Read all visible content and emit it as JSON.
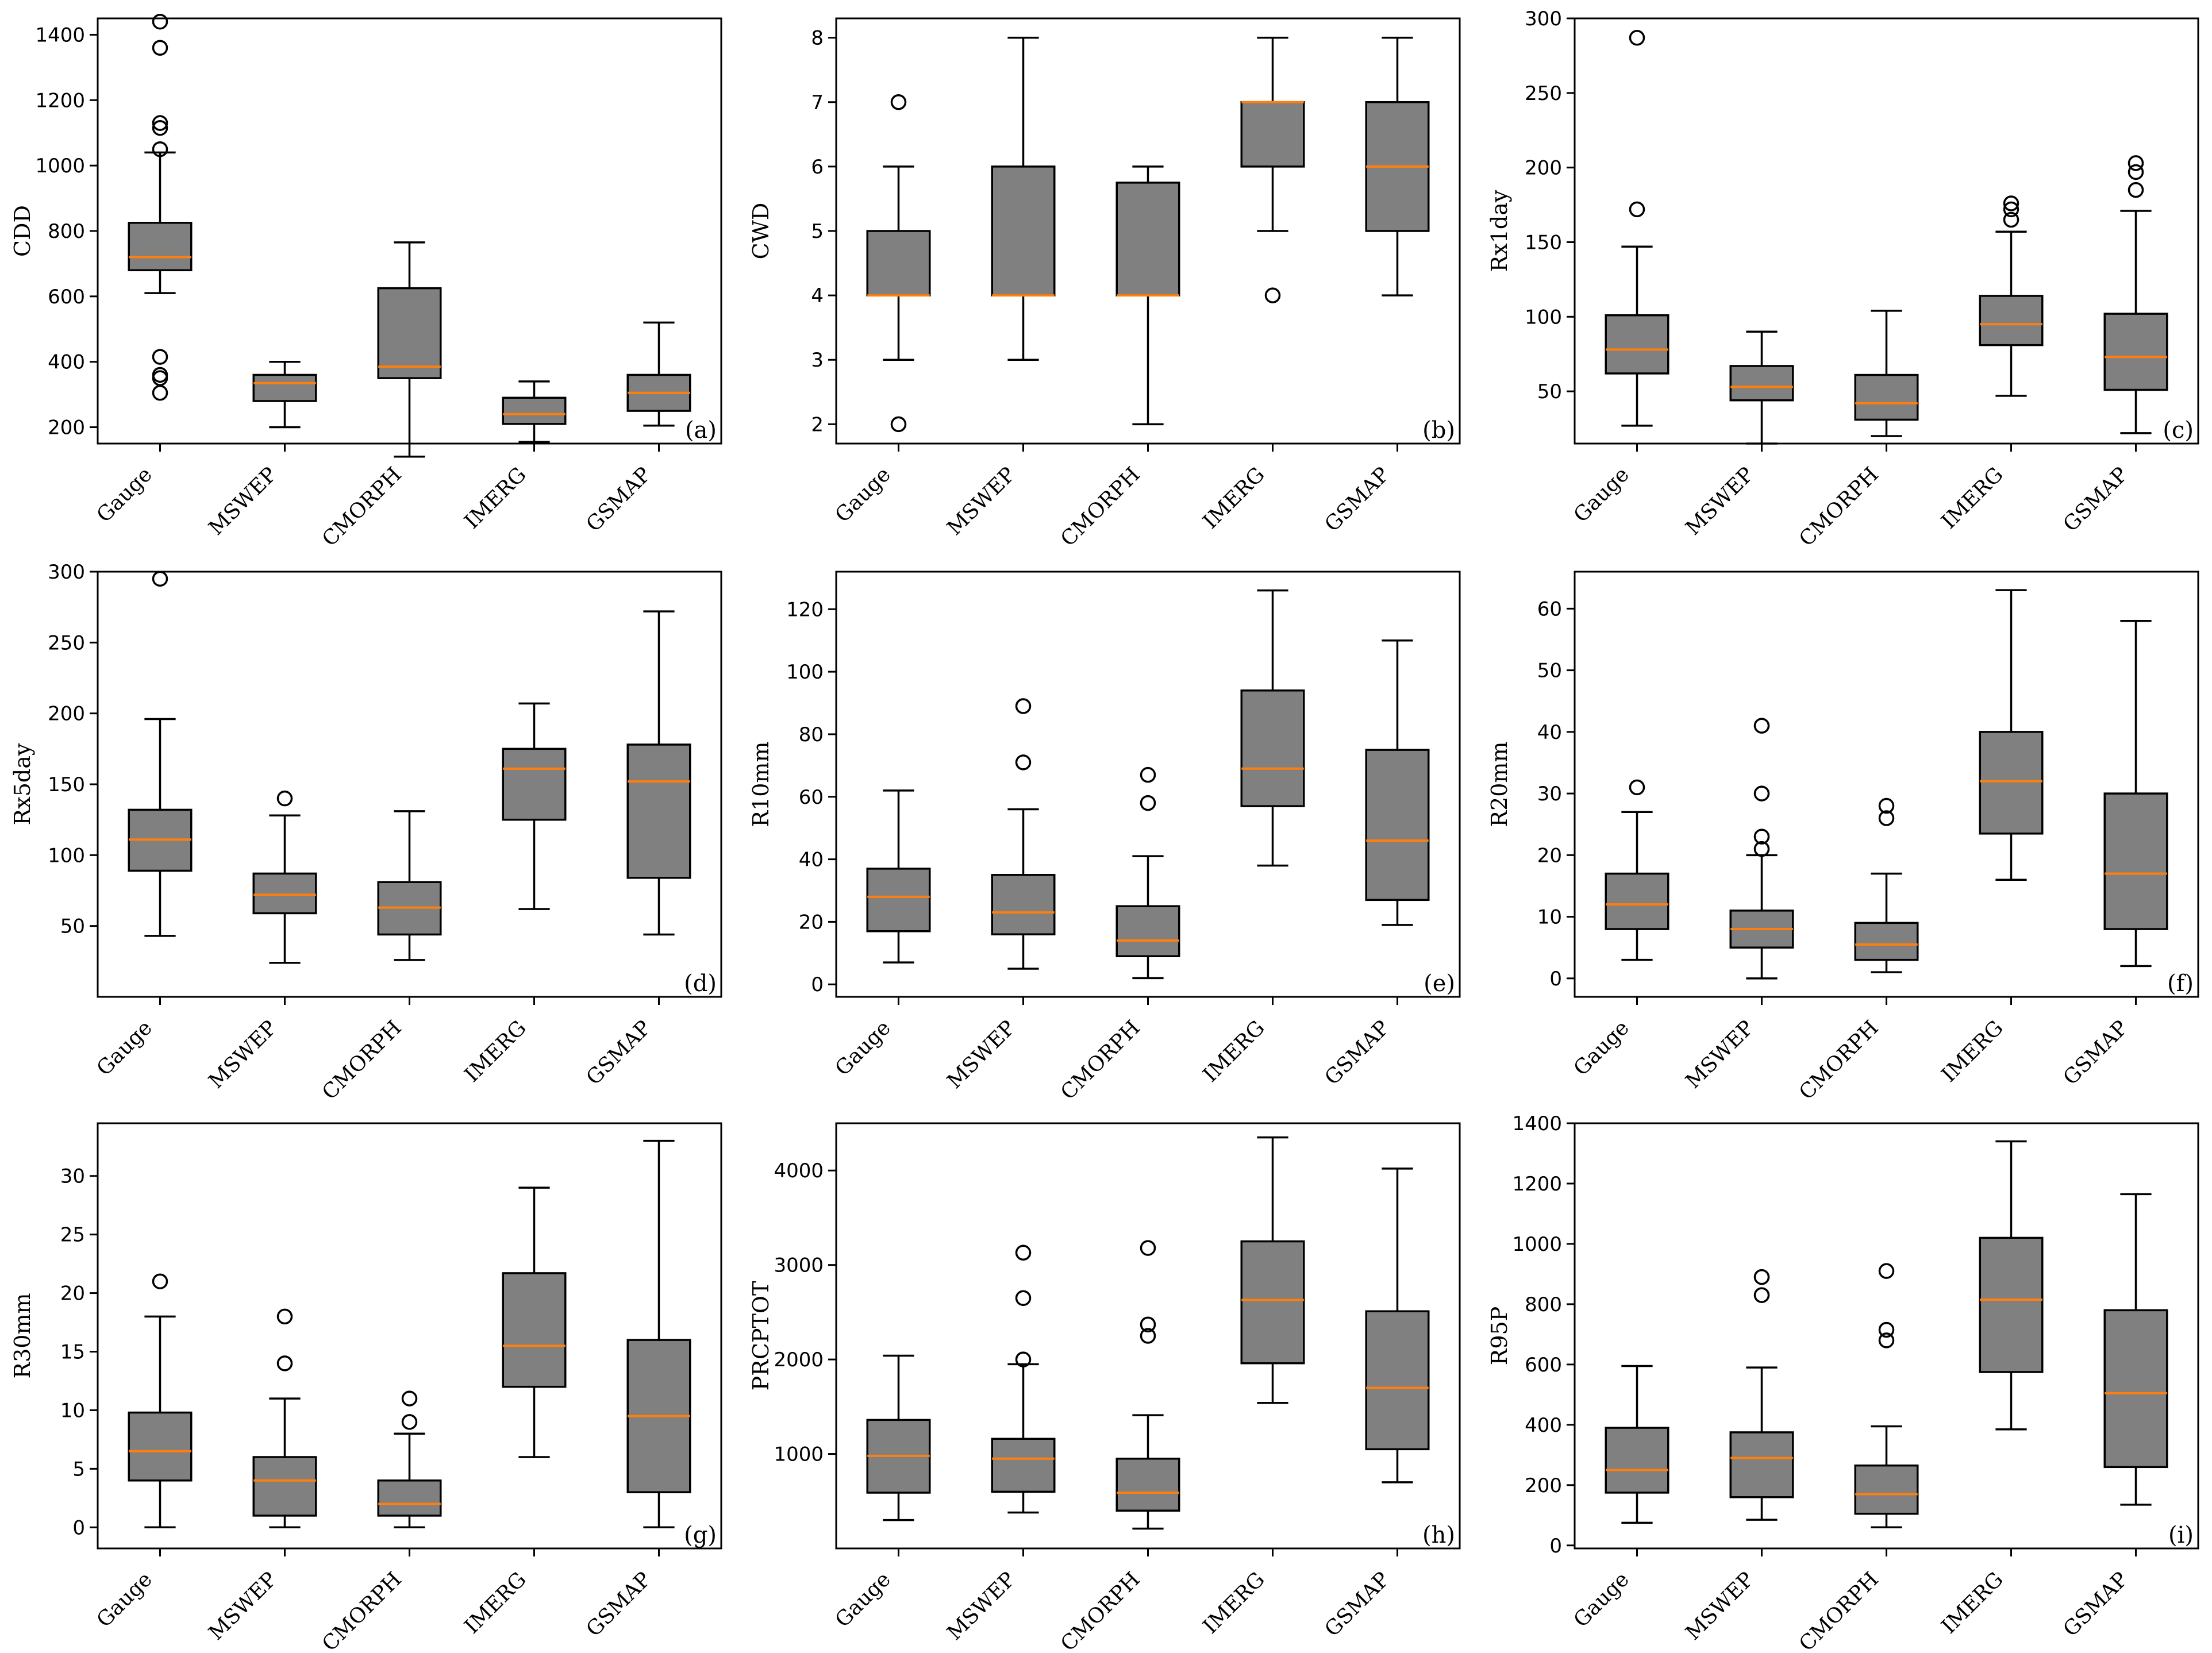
{
  "figure": {
    "box_color": "#808080",
    "median_color": "#ff7f0e",
    "categories": [
      "Gauge",
      "MSWEP",
      "CMORPH",
      "IMERG",
      "GSMAP"
    ]
  },
  "chart_data": [
    {
      "type": "box",
      "tag": "(a)",
      "ylabel": "CDD",
      "ylim": [
        150,
        1450
      ],
      "yticks": [
        200,
        400,
        600,
        800,
        1000,
        1200,
        1400
      ],
      "boxes": [
        {
          "whislo": 610,
          "q1": 680,
          "med": 720,
          "q3": 825,
          "whishi": 1040,
          "fliers": [
            1440,
            1360,
            1130,
            1115,
            1050,
            415,
            360,
            350,
            305
          ]
        },
        {
          "whislo": 200,
          "q1": 280,
          "med": 335,
          "q3": 360,
          "whishi": 400,
          "fliers": []
        },
        {
          "whislo": 110,
          "q1": 350,
          "med": 385,
          "q3": 625,
          "whishi": 765,
          "fliers": []
        },
        {
          "whislo": 155,
          "q1": 210,
          "med": 240,
          "q3": 290,
          "whishi": 340,
          "fliers": []
        },
        {
          "whislo": 205,
          "q1": 250,
          "med": 305,
          "q3": 360,
          "whishi": 520,
          "fliers": []
        }
      ]
    },
    {
      "type": "box",
      "tag": "(b)",
      "ylabel": "CWD",
      "ylim": [
        1.7,
        8.3
      ],
      "yticks": [
        2,
        3,
        4,
        5,
        6,
        7,
        8
      ],
      "boxes": [
        {
          "whislo": 3,
          "q1": 4,
          "med": 4,
          "q3": 5,
          "whishi": 6,
          "fliers": [
            7,
            2
          ]
        },
        {
          "whislo": 3,
          "q1": 4,
          "med": 4,
          "q3": 6,
          "whishi": 8,
          "fliers": []
        },
        {
          "whislo": 2,
          "q1": 4,
          "med": 4,
          "q3": 5.75,
          "whishi": 6,
          "fliers": []
        },
        {
          "whislo": 5,
          "q1": 6,
          "med": 7,
          "q3": 7,
          "whishi": 8,
          "fliers": [
            4
          ]
        },
        {
          "whislo": 4,
          "q1": 5,
          "med": 6,
          "q3": 7,
          "whishi": 8,
          "fliers": []
        }
      ]
    },
    {
      "type": "box",
      "tag": "(c)",
      "ylabel": "Rx1day",
      "ylim": [
        15,
        300
      ],
      "yticks": [
        50,
        100,
        150,
        200,
        250,
        300
      ],
      "boxes": [
        {
          "whislo": 27,
          "q1": 62,
          "med": 78,
          "q3": 101,
          "whishi": 147,
          "fliers": [
            287,
            172
          ]
        },
        {
          "whislo": 15,
          "q1": 44,
          "med": 53,
          "q3": 67,
          "whishi": 90,
          "fliers": []
        },
        {
          "whislo": 20,
          "q1": 31,
          "med": 42,
          "q3": 61,
          "whishi": 104,
          "fliers": []
        },
        {
          "whislo": 47,
          "q1": 81,
          "med": 95,
          "q3": 114,
          "whishi": 157,
          "fliers": [
            176,
            172,
            165
          ]
        },
        {
          "whislo": 22,
          "q1": 51,
          "med": 73,
          "q3": 102,
          "whishi": 171,
          "fliers": [
            203,
            197,
            185
          ]
        }
      ]
    },
    {
      "type": "box",
      "tag": "(d)",
      "ylabel": "Rx5day",
      "ylim": [
        0,
        300
      ],
      "yticks": [
        50,
        100,
        150,
        200,
        250,
        300
      ],
      "boxes": [
        {
          "whislo": 43,
          "q1": 89,
          "med": 111,
          "q3": 132,
          "whishi": 196,
          "fliers": [
            295
          ]
        },
        {
          "whislo": 24,
          "q1": 59,
          "med": 72,
          "q3": 87,
          "whishi": 128,
          "fliers": [
            140
          ]
        },
        {
          "whislo": 26,
          "q1": 44,
          "med": 63,
          "q3": 81,
          "whishi": 131,
          "fliers": []
        },
        {
          "whislo": 62,
          "q1": 125,
          "med": 161,
          "q3": 175,
          "whishi": 207,
          "fliers": []
        },
        {
          "whislo": 44,
          "q1": 84,
          "med": 152,
          "q3": 178,
          "whishi": 272,
          "fliers": []
        }
      ]
    },
    {
      "type": "box",
      "tag": "(e)",
      "ylabel": "R10mm",
      "ylim": [
        -4,
        132
      ],
      "yticks": [
        0,
        20,
        40,
        60,
        80,
        100,
        120
      ],
      "boxes": [
        {
          "whislo": 7,
          "q1": 17,
          "med": 28,
          "q3": 37,
          "whishi": 62,
          "fliers": []
        },
        {
          "whislo": 5,
          "q1": 16,
          "med": 23,
          "q3": 35,
          "whishi": 56,
          "fliers": [
            89,
            71
          ]
        },
        {
          "whislo": 2,
          "q1": 9,
          "med": 14,
          "q3": 25,
          "whishi": 41,
          "fliers": [
            67,
            58
          ]
        },
        {
          "whislo": 38,
          "q1": 57,
          "med": 69,
          "q3": 94,
          "whishi": 126,
          "fliers": []
        },
        {
          "whislo": 19,
          "q1": 27,
          "med": 46,
          "q3": 75,
          "whishi": 110,
          "fliers": []
        }
      ]
    },
    {
      "type": "box",
      "tag": "(f)",
      "ylabel": "R20mm",
      "ylim": [
        -3,
        66
      ],
      "yticks": [
        0,
        10,
        20,
        30,
        40,
        50,
        60
      ],
      "boxes": [
        {
          "whislo": 3,
          "q1": 8,
          "med": 12,
          "q3": 17,
          "whishi": 27,
          "fliers": [
            31
          ]
        },
        {
          "whislo": 0,
          "q1": 5,
          "med": 8,
          "q3": 11,
          "whishi": 20,
          "fliers": [
            41,
            30,
            23,
            21
          ]
        },
        {
          "whislo": 1,
          "q1": 3,
          "med": 5.5,
          "q3": 9,
          "whishi": 17,
          "fliers": [
            28,
            26
          ]
        },
        {
          "whislo": 16,
          "q1": 23.5,
          "med": 32,
          "q3": 40,
          "whishi": 63,
          "fliers": []
        },
        {
          "whislo": 2,
          "q1": 8,
          "med": 17,
          "q3": 30,
          "whishi": 58,
          "fliers": []
        }
      ]
    },
    {
      "type": "box",
      "tag": "(g)",
      "ylabel": "R30mm",
      "ylim": [
        -1.8,
        34.5
      ],
      "yticks": [
        0,
        5,
        10,
        15,
        20,
        25,
        30
      ],
      "boxes": [
        {
          "whislo": 0,
          "q1": 4,
          "med": 6.5,
          "q3": 9.8,
          "whishi": 18,
          "fliers": [
            21
          ]
        },
        {
          "whislo": 0,
          "q1": 1,
          "med": 4,
          "q3": 6,
          "whishi": 11,
          "fliers": [
            18,
            14
          ]
        },
        {
          "whislo": 0,
          "q1": 1,
          "med": 2,
          "q3": 4,
          "whishi": 8,
          "fliers": [
            11,
            9
          ]
        },
        {
          "whislo": 6,
          "q1": 12,
          "med": 15.5,
          "q3": 21.7,
          "whishi": 29,
          "fliers": []
        },
        {
          "whislo": 0,
          "q1": 3,
          "med": 9.5,
          "q3": 16,
          "whishi": 33,
          "fliers": []
        }
      ]
    },
    {
      "type": "box",
      "tag": "(h)",
      "ylabel": "PRCPTOT",
      "ylim": [
        0,
        4500
      ],
      "yticks": [
        1000,
        2000,
        3000,
        4000
      ],
      "boxes": [
        {
          "whislo": 300,
          "q1": 590,
          "med": 980,
          "q3": 1360,
          "whishi": 2040,
          "fliers": []
        },
        {
          "whislo": 380,
          "q1": 600,
          "med": 950,
          "q3": 1160,
          "whishi": 1950,
          "fliers": [
            3130,
            2650,
            2000
          ]
        },
        {
          "whislo": 210,
          "q1": 400,
          "med": 590,
          "q3": 950,
          "whishi": 1410,
          "fliers": [
            3180,
            2370,
            2250
          ]
        },
        {
          "whislo": 1540,
          "q1": 1960,
          "med": 2630,
          "q3": 3250,
          "whishi": 4350,
          "fliers": []
        },
        {
          "whislo": 700,
          "q1": 1050,
          "med": 1700,
          "q3": 2510,
          "whishi": 4020,
          "fliers": []
        }
      ]
    },
    {
      "type": "box",
      "tag": "(i)",
      "ylabel": "R95P",
      "ylim": [
        -10,
        1400
      ],
      "yticks": [
        0,
        200,
        400,
        600,
        800,
        1000,
        1200,
        1400
      ],
      "boxes": [
        {
          "whislo": 75,
          "q1": 175,
          "med": 250,
          "q3": 390,
          "whishi": 595,
          "fliers": []
        },
        {
          "whislo": 85,
          "q1": 160,
          "med": 290,
          "q3": 375,
          "whishi": 590,
          "fliers": [
            890,
            830
          ]
        },
        {
          "whislo": 60,
          "q1": 105,
          "med": 170,
          "q3": 265,
          "whishi": 395,
          "fliers": [
            910,
            715,
            680
          ]
        },
        {
          "whislo": 385,
          "q1": 575,
          "med": 815,
          "q3": 1020,
          "whishi": 1340,
          "fliers": []
        },
        {
          "whislo": 135,
          "q1": 260,
          "med": 505,
          "q3": 780,
          "whishi": 1165,
          "fliers": []
        }
      ]
    }
  ]
}
